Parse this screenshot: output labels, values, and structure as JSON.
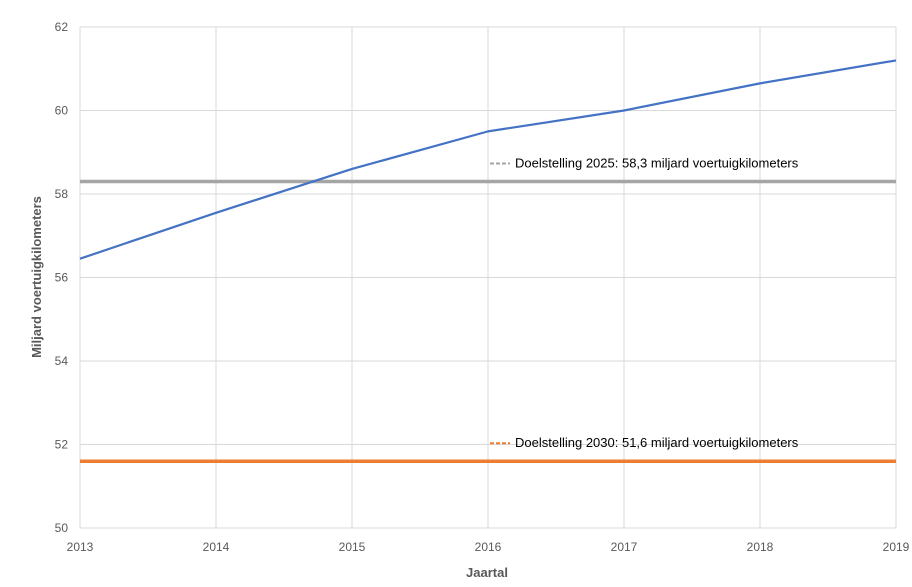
{
  "chart_data": {
    "type": "line",
    "x": [
      2013,
      2014,
      2015,
      2016,
      2017,
      2018,
      2019
    ],
    "series": [
      {
        "values": [
          56.45,
          57.55,
          58.6,
          59.5,
          60.0,
          60.65,
          61.2
        ],
        "color": "#4472C4"
      }
    ],
    "reference_lines": [
      {
        "label": "Doelstelling 2025: 58,3 miljard voertuigkilometers",
        "value": 58.3,
        "color": "#A5A5A5"
      },
      {
        "label": "Doelstelling 2030: 51,6 miljard voertuigkilometers",
        "value": 51.6,
        "color": "#ED7D31"
      }
    ],
    "xlabel": "Jaartal",
    "ylabel": "Miljard voertuigkilometers",
    "xlim": [
      2013,
      2019
    ],
    "ylim": [
      50,
      62
    ],
    "y_ticks": [
      "50",
      "52",
      "54",
      "56",
      "58",
      "60",
      "62"
    ],
    "x_ticks": [
      "2013",
      "2014",
      "2015",
      "2016",
      "2017",
      "2018",
      "2019"
    ],
    "grid": true
  }
}
